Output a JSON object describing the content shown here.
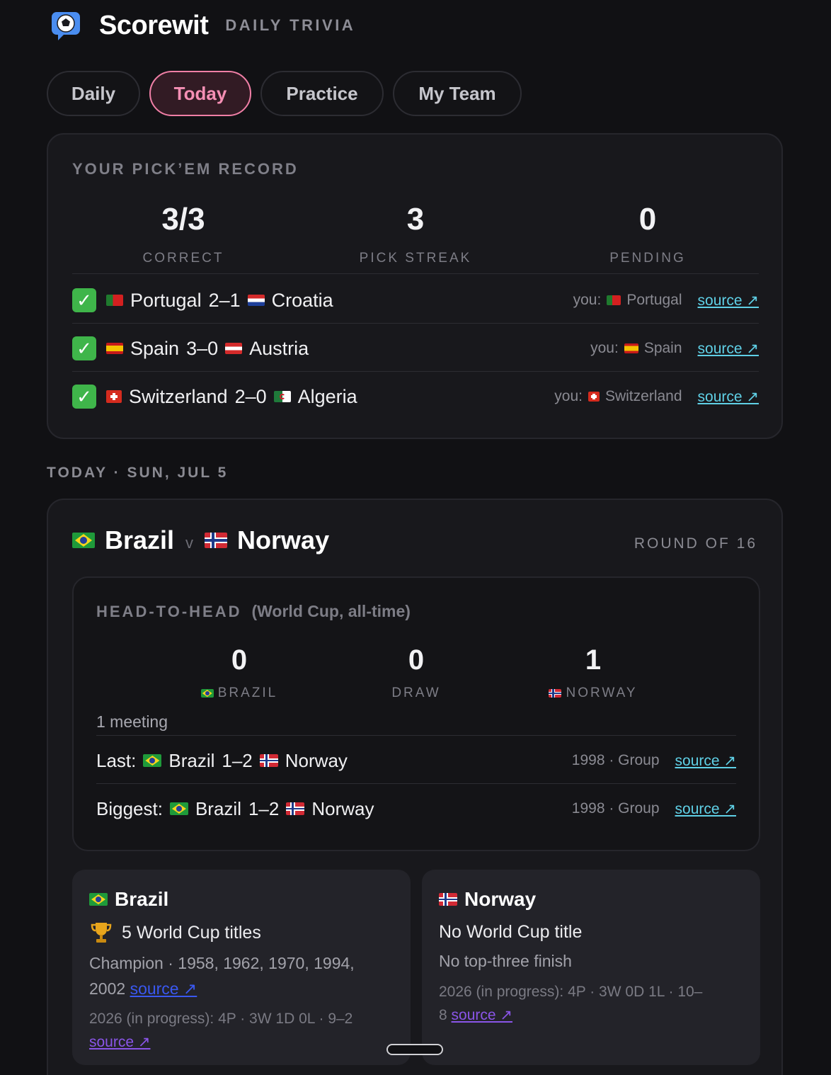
{
  "header": {
    "brand": "Scorewit",
    "tagline": "DAILY TRIVIA",
    "logo_icon": "soccer-ball-chat-icon"
  },
  "tabs": [
    {
      "label": "Daily",
      "active": false
    },
    {
      "label": "Today",
      "active": true
    },
    {
      "label": "Practice",
      "active": false
    },
    {
      "label": "My Team",
      "active": false
    }
  ],
  "record": {
    "title": "YOUR PICK’EM RECORD",
    "stats": [
      {
        "value": "3/3",
        "label": "CORRECT"
      },
      {
        "value": "3",
        "label": "PICK STREAK"
      },
      {
        "value": "0",
        "label": "PENDING"
      }
    ],
    "picks": [
      {
        "home": "Portugal",
        "score": "2–1",
        "away": "Croatia",
        "you_label": "you:",
        "pick": "Portugal",
        "source": "source ↗"
      },
      {
        "home": "Spain",
        "score": "3–0",
        "away": "Austria",
        "you_label": "you:",
        "pick": "Spain",
        "source": "source ↗"
      },
      {
        "home": "Switzerland",
        "score": "2–0",
        "away": "Algeria",
        "you_label": "you:",
        "pick": "Switzerland",
        "source": "source ↗"
      }
    ]
  },
  "today": {
    "section_title": "TODAY · SUN, JUL 5",
    "match": {
      "home": "Brazil",
      "vs": "v",
      "away": "Norway",
      "round": "ROUND OF 16"
    },
    "h2h": {
      "title": "HEAD-TO-HEAD",
      "subtitle": "(World Cup, all-time)",
      "stats": [
        {
          "value": "0",
          "label": "BRAZIL"
        },
        {
          "value": "0",
          "label": "DRAW"
        },
        {
          "value": "1",
          "label": "NORWAY"
        }
      ],
      "meetings": "1 meeting",
      "last": {
        "prefix": "Last:",
        "home": "Brazil",
        "score": "1–2",
        "away": "Norway",
        "meta": "1998 · Group",
        "source": "source ↗"
      },
      "biggest": {
        "prefix": "Biggest:",
        "home": "Brazil",
        "score": "1–2",
        "away": "Norway",
        "meta": "1998 · Group",
        "source": "source ↗"
      }
    },
    "teams": [
      {
        "name": "Brazil",
        "titles": "5 World Cup titles",
        "detail": "Champion · 1958, 1962, 1970, 1994,",
        "detail2": "2002",
        "detail_source": "source ↗",
        "current": "2026 (in progress): 4P · 3W 1D 0L · 9–2",
        "current_source": "source ↗"
      },
      {
        "name": "Norway",
        "titles": "No World Cup title",
        "detail": "No top-three finish",
        "current": "2026 (in progress): 4P · 3W 0D 1L · 10–",
        "current2": "8",
        "current_source": "source ↗"
      }
    ]
  }
}
